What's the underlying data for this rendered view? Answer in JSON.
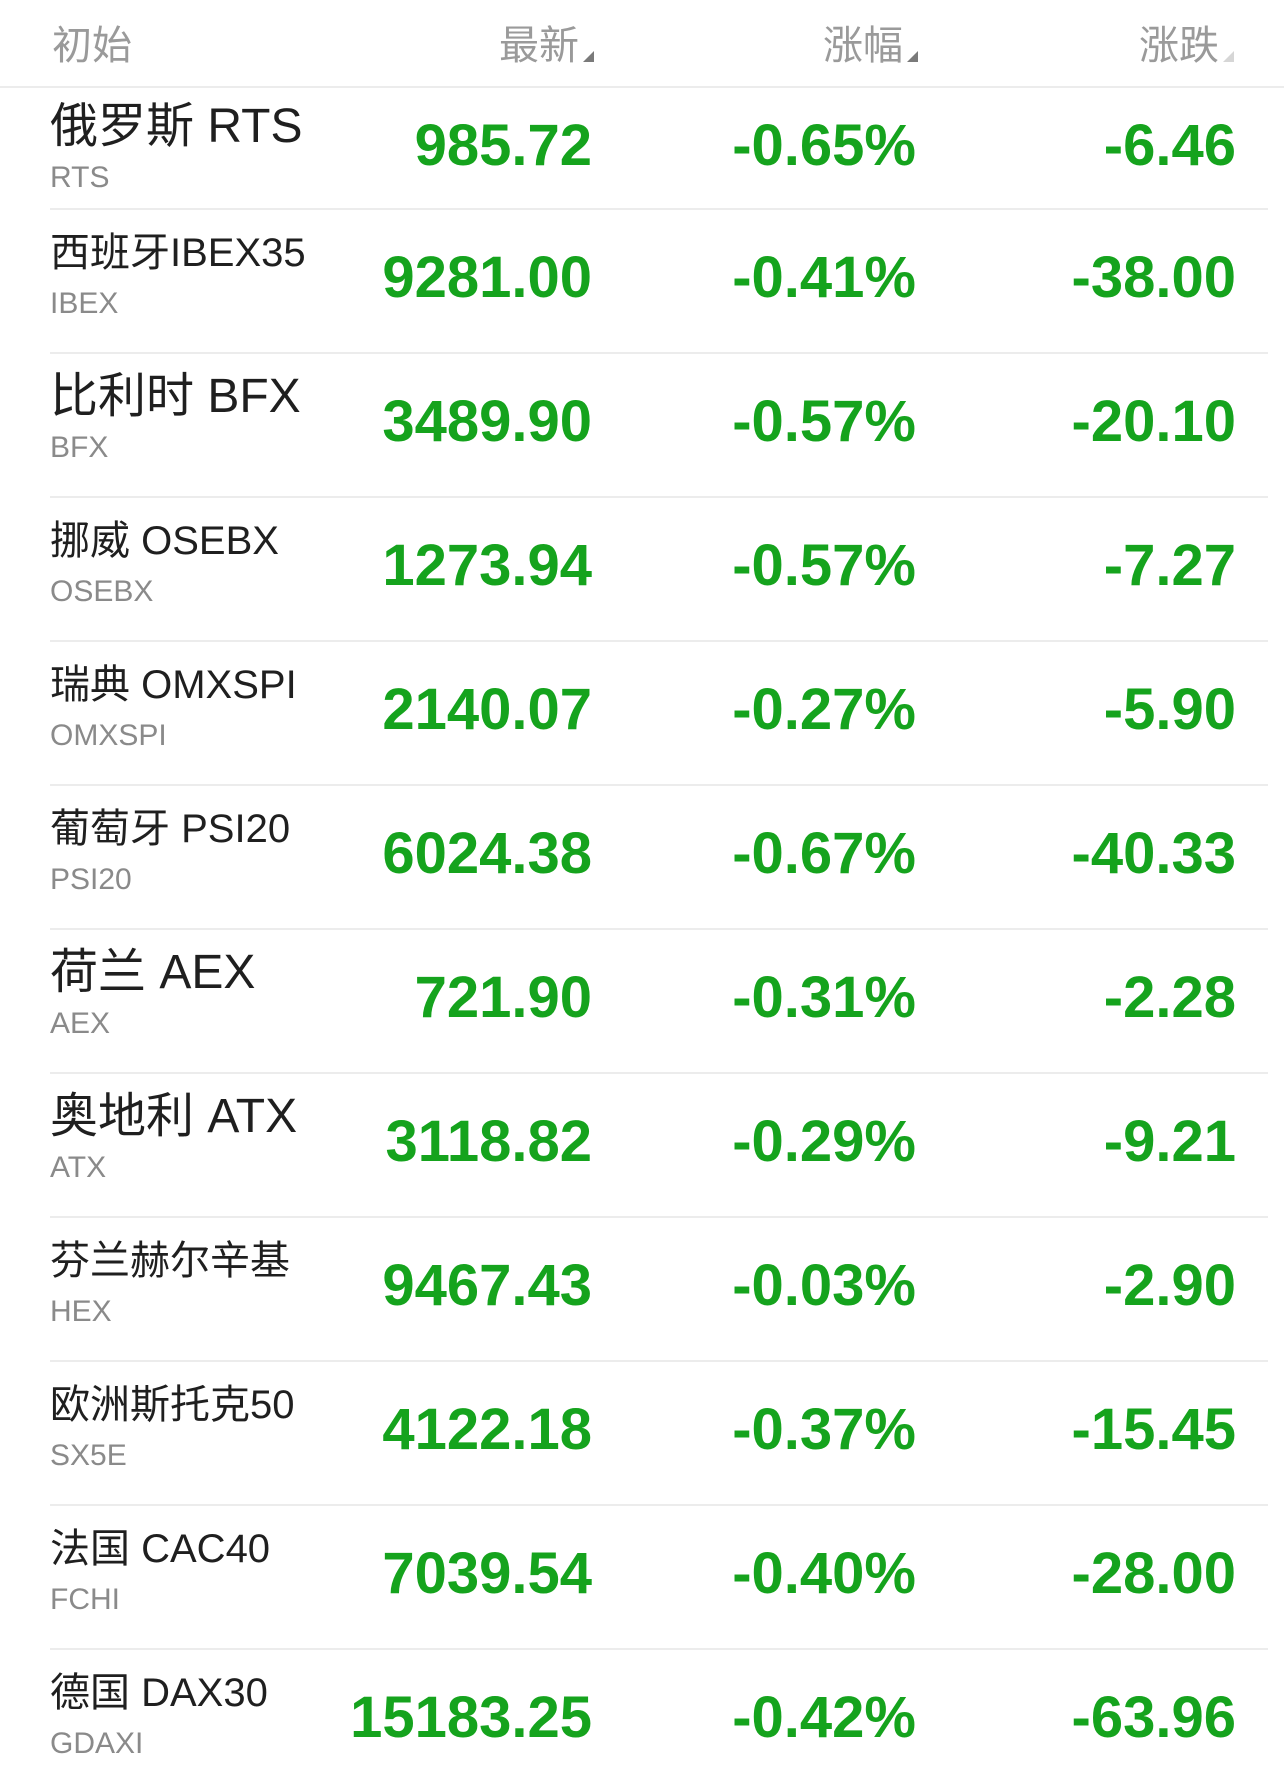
{
  "header": {
    "name_label": "初始",
    "price_label": "最新",
    "pct_label": "涨幅",
    "chg_label": "涨跌"
  },
  "colors": {
    "down": "#15a31d",
    "header_text": "#9a9a9a",
    "divider": "#ececec"
  },
  "rows": [
    {
      "name": "俄罗斯 RTS",
      "code": "RTS",
      "price": "985.72",
      "pct": "-0.65%",
      "chg": "-6.46"
    },
    {
      "name": "西班牙IBEX35",
      "code": "IBEX",
      "price": "9281.00",
      "pct": "-0.41%",
      "chg": "-38.00"
    },
    {
      "name": "比利时 BFX",
      "code": "BFX",
      "price": "3489.90",
      "pct": "-0.57%",
      "chg": "-20.10"
    },
    {
      "name": "挪威 OSEBX",
      "code": "OSEBX",
      "price": "1273.94",
      "pct": "-0.57%",
      "chg": "-7.27"
    },
    {
      "name": "瑞典 OMXSPI",
      "code": "OMXSPI",
      "price": "2140.07",
      "pct": "-0.27%",
      "chg": "-5.90"
    },
    {
      "name": "葡萄牙 PSI20",
      "code": "PSI20",
      "price": "6024.38",
      "pct": "-0.67%",
      "chg": "-40.33"
    },
    {
      "name": "荷兰 AEX",
      "code": "AEX",
      "price": "721.90",
      "pct": "-0.31%",
      "chg": "-2.28"
    },
    {
      "name": "奥地利 ATX",
      "code": "ATX",
      "price": "3118.82",
      "pct": "-0.29%",
      "chg": "-9.21"
    },
    {
      "name": "芬兰赫尔辛基",
      "code": "HEX",
      "price": "9467.43",
      "pct": "-0.03%",
      "chg": "-2.90"
    },
    {
      "name": "欧洲斯托克50",
      "code": "SX5E",
      "price": "4122.18",
      "pct": "-0.37%",
      "chg": "-15.45"
    },
    {
      "name": "法国 CAC40",
      "code": "FCHI",
      "price": "7039.54",
      "pct": "-0.40%",
      "chg": "-28.00"
    },
    {
      "name": "德国 DAX30",
      "code": "GDAXI",
      "price": "15183.25",
      "pct": "-0.42%",
      "chg": "-63.96"
    }
  ]
}
